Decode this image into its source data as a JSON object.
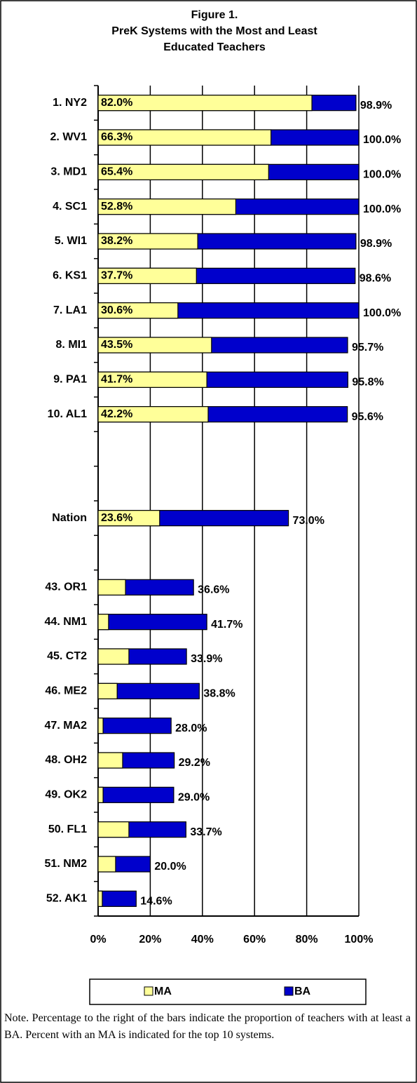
{
  "chart_data": {
    "type": "bar",
    "overlap": true,
    "title_lines": [
      "Figure 1.",
      "PreK Systems with the Most and Least",
      "Educated Teachers"
    ],
    "categories": [
      "1. NY2",
      "2. WV1",
      "3. MD1",
      "4. SC1",
      "5. WI1",
      "6. KS1",
      "7. LA1",
      "8. MI1",
      "9. PA1",
      "10. AL1",
      null,
      null,
      "Nation",
      null,
      "43. OR1",
      "44. NM1",
      "45. CT2",
      "46. ME2",
      "47. MA2",
      "48. OH2",
      "49. OK2",
      "50. FL1",
      "51. NM2",
      "52. AK1"
    ],
    "series": [
      {
        "name": "BA",
        "color": "#0000cc",
        "values": [
          98.9,
          100.0,
          100.0,
          100.0,
          98.9,
          98.6,
          100.0,
          95.7,
          95.8,
          95.6,
          null,
          null,
          73.0,
          null,
          36.6,
          41.7,
          33.9,
          38.8,
          28.0,
          29.2,
          29.0,
          33.7,
          20.0,
          14.6
        ],
        "value_labels": [
          "98.9%",
          "100.0%",
          "100.0%",
          "100.0%",
          "98.9%",
          "98.6%",
          "100.0%",
          "95.7%",
          "95.8%",
          "95.6%",
          null,
          null,
          "73.0%",
          null,
          "36.6%",
          "41.7%",
          "33.9%",
          "38.8%",
          "28.0%",
          "29.2%",
          "29.0%",
          "33.7%",
          "20.0%",
          "14.6%"
        ]
      },
      {
        "name": "MA",
        "color": "#ffff99",
        "values": [
          82.0,
          66.3,
          65.4,
          52.8,
          38.2,
          37.7,
          30.6,
          43.5,
          41.7,
          42.2,
          null,
          null,
          23.6,
          null,
          10.5,
          4.0,
          11.8,
          7.3,
          1.9,
          9.4,
          1.9,
          11.8,
          6.7,
          1.6
        ],
        "value_labels": [
          "82.0%",
          "66.3%",
          "65.4%",
          "52.8%",
          "38.2%",
          "37.7%",
          "30.6%",
          "43.5%",
          "41.7%",
          "42.2%",
          null,
          null,
          "23.6%",
          null,
          null,
          null,
          null,
          null,
          null,
          null,
          null,
          null,
          null,
          null
        ]
      }
    ],
    "xlim": [
      0,
      100
    ],
    "xticks": [
      {
        "value": 0,
        "label": "0%"
      },
      {
        "value": 20,
        "label": "20%"
      },
      {
        "value": 40,
        "label": "40%"
      },
      {
        "value": 60,
        "label": "60%"
      },
      {
        "value": 80,
        "label": "80%"
      },
      {
        "value": 100,
        "label": "100%"
      }
    ],
    "grid": true,
    "legend_order": [
      1,
      0
    ],
    "note": "Note. Percentage to the right of the bars indicate the proportion of teachers with at least a BA. Percent with an MA is indicated for the top 10 systems."
  }
}
